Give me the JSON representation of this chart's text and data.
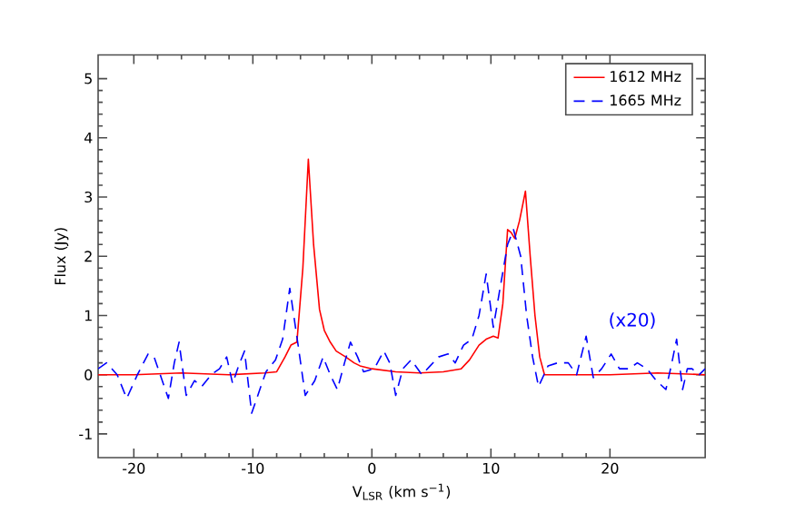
{
  "chart_data": {
    "type": "line",
    "xlabel": "V$_{LSR}$ (km s$^{−1}$)",
    "ylabel": "Flux (Jy)",
    "xlim": [
      -23,
      28
    ],
    "ylim": [
      -1.4,
      5.4
    ],
    "xticks": [
      -20,
      -10,
      0,
      10,
      20
    ],
    "yticks": [
      -1,
      0,
      1,
      2,
      3,
      4,
      5
    ],
    "legend": "top right",
    "grid": false,
    "annotations": [
      "(x20)"
    ],
    "series": [
      {
        "name": "1612 MHz",
        "color": "#ff0000",
        "line_style": "solid",
        "x": [
          -23,
          -20,
          -16,
          -12,
          -9,
          -8,
          -7.3,
          -6.8,
          -6.3,
          -5.8,
          -5.34,
          -4.9,
          -4.4,
          -4.0,
          -3.5,
          -3,
          -2.2,
          -1.5,
          -1,
          0,
          2,
          4,
          6,
          7.5,
          8.2,
          9,
          9.6,
          10.2,
          10.6,
          11.0,
          11.4,
          11.7,
          12.0,
          12.4,
          12.9,
          13.3,
          13.7,
          14.1,
          14.5,
          16,
          20,
          24,
          28
        ],
        "values": [
          0.0,
          0.0,
          0.03,
          0.0,
          0.03,
          0.05,
          0.3,
          0.5,
          0.55,
          1.8,
          3.64,
          2.2,
          1.1,
          0.75,
          0.55,
          0.4,
          0.3,
          0.2,
          0.15,
          0.1,
          0.05,
          0.03,
          0.05,
          0.1,
          0.25,
          0.5,
          0.6,
          0.65,
          0.62,
          1.2,
          2.45,
          2.4,
          2.3,
          2.6,
          3.1,
          2.0,
          1.0,
          0.3,
          0.0,
          0.0,
          0.0,
          0.03,
          0.0
        ]
      },
      {
        "name": "1665 MHz",
        "color": "#0000ff",
        "line_style": "dashed",
        "x": [
          -23,
          -22.3,
          -21.4,
          -20.6,
          -19.7,
          -18.8,
          -18.3,
          -17.7,
          -17.1,
          -16.6,
          -16.2,
          -15.6,
          -14.9,
          -14.3,
          -13.5,
          -12.8,
          -12.2,
          -11.7,
          -11.2,
          -10.7,
          -10.1,
          -9.5,
          -8.9,
          -8.1,
          -7.5,
          -6.9,
          -6.2,
          -5.6,
          -4.8,
          -4.1,
          -3.5,
          -2.9,
          -2.3,
          -1.8,
          -1.2,
          -0.7,
          0.2,
          1.0,
          1.5,
          2.0,
          2.6,
          3.3,
          4.2,
          4.9,
          5.6,
          6.4,
          7.0,
          7.7,
          8.4,
          9.0,
          9.6,
          10.2,
          10.8,
          11.4,
          11.9,
          12.5,
          13.0,
          13.5,
          14.0,
          14.8,
          15.6,
          16.5,
          17.2,
          18.0,
          18.6,
          19.3,
          20.1,
          20.8,
          21.6,
          22.3,
          23.1,
          23.9,
          24.7,
          25.2,
          25.6,
          26.1,
          26.5,
          26.9,
          27.5,
          28
        ],
        "values": [
          0.1,
          0.2,
          0.0,
          -0.4,
          0.0,
          0.35,
          0.3,
          -0.05,
          -0.4,
          0.2,
          0.55,
          -0.35,
          -0.1,
          -0.2,
          0.0,
          0.1,
          0.3,
          -0.15,
          0.15,
          0.4,
          -0.65,
          -0.3,
          0.05,
          0.25,
          0.6,
          1.46,
          0.5,
          -0.35,
          -0.1,
          0.3,
          0.0,
          -0.25,
          0.2,
          0.55,
          0.3,
          0.05,
          0.1,
          0.4,
          0.2,
          -0.35,
          0.1,
          0.25,
          0.0,
          0.15,
          0.3,
          0.35,
          0.2,
          0.5,
          0.6,
          1.0,
          1.7,
          0.8,
          1.5,
          2.2,
          2.45,
          2.0,
          1.0,
          0.3,
          -0.2,
          0.15,
          0.2,
          0.2,
          0.0,
          0.65,
          -0.05,
          0.1,
          0.35,
          0.1,
          0.1,
          0.2,
          0.1,
          -0.1,
          -0.25,
          0.2,
          0.6,
          -0.25,
          0.1,
          0.1,
          0.0,
          0.1
        ]
      }
    ]
  }
}
